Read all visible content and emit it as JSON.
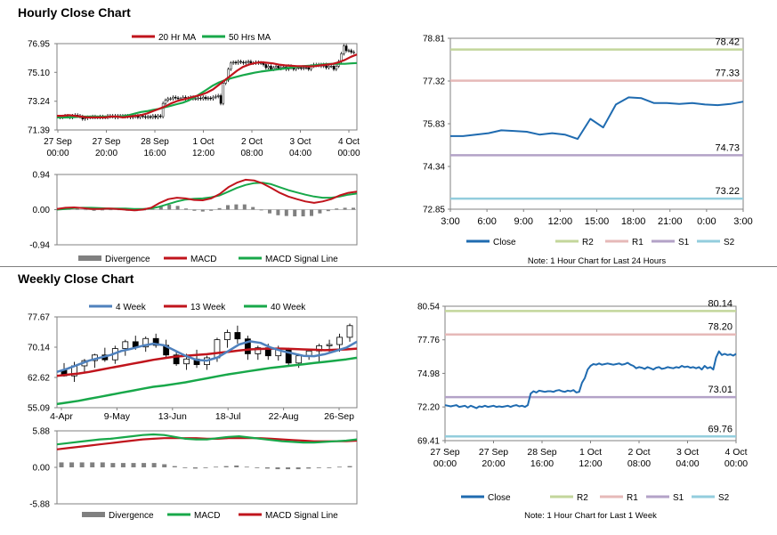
{
  "sections": {
    "hourly_title": "Hourly Close Chart",
    "weekly_title": "Weekly Close Chart"
  },
  "colors": {
    "red": "#c0141c",
    "green": "#18a84a",
    "blue": "#1f6bb0",
    "gray": "#808080",
    "r2": "#c3d69b",
    "r1": "#e6b9b8",
    "s1": "#b3a2c7",
    "s2": "#93cddd"
  },
  "chart_data": [
    {
      "id": "hourly_price",
      "type": "candlestick",
      "title": "Hourly Close Chart",
      "legend": [
        "20 Hr MA",
        "50 Hrs MA"
      ],
      "yticks": [
        "76.95",
        "75.10",
        "73.24",
        "71.39"
      ],
      "ylim": [
        71.39,
        76.95
      ],
      "xticks": [
        [
          "27 Sep",
          "00:00"
        ],
        [
          "27 Sep",
          "20:00"
        ],
        [
          "28 Sep",
          "16:00"
        ],
        [
          "1 Oct",
          "12:00"
        ],
        [
          "2 Oct",
          "08:00"
        ],
        [
          "3 Oct",
          "04:00"
        ],
        [
          "4 Oct",
          "00:00"
        ]
      ],
      "close": [
        72.2,
        72.25,
        72.3,
        72.25,
        72.2,
        72.3,
        72.35,
        72.3,
        72.25,
        72.1,
        72.15,
        72.2,
        72.2,
        72.25,
        72.2,
        72.2,
        72.25,
        72.2,
        72.2,
        72.3,
        72.25,
        72.3,
        72.2,
        72.3,
        72.3,
        72.25,
        72.3,
        72.25,
        72.2,
        72.25,
        72.3,
        72.2,
        72.3,
        72.25,
        72.2,
        72.25,
        72.2,
        72.3,
        72.2,
        72.3,
        72.25,
        73.1,
        73.3,
        73.4,
        73.4,
        73.5,
        73.45,
        73.4,
        73.4,
        73.5,
        73.4,
        73.45,
        73.5,
        73.4,
        73.4,
        73.45,
        73.4,
        73.5,
        73.4,
        73.45,
        73.4,
        73.5,
        73.55,
        73.6,
        73.1,
        74.4,
        74.6,
        75.3,
        75.7,
        75.75,
        75.7,
        75.8,
        75.75,
        75.7,
        75.75,
        75.8,
        75.7,
        75.7,
        75.75,
        75.7,
        75.7,
        75.6,
        75.4,
        75.5,
        75.3,
        75.4,
        75.5,
        75.35,
        75.4,
        75.45,
        75.3,
        75.5,
        75.4,
        75.3,
        75.4,
        75.4,
        75.35,
        75.4,
        75.4,
        75.3,
        75.5,
        75.6,
        75.55,
        75.6,
        75.5,
        75.6,
        75.4,
        75.5,
        75.5,
        75.3,
        75.5,
        75.8,
        76.3,
        76.8,
        76.5,
        76.5,
        76.4,
        76.4
      ],
      "ma20": [
        72.3,
        72.3,
        72.35,
        72.3,
        72.25,
        72.2,
        72.2,
        72.2,
        72.2,
        72.25,
        72.25,
        72.2,
        72.25,
        72.3,
        72.35,
        72.45,
        72.6,
        72.75,
        72.9,
        73.1,
        73.25,
        73.35,
        73.45,
        73.55,
        73.65,
        73.8,
        74.0,
        74.3,
        74.6,
        74.9,
        75.2,
        75.45,
        75.6,
        75.7,
        75.75,
        75.72,
        75.68,
        75.6,
        75.55,
        75.52,
        75.5,
        75.5,
        75.48,
        75.5,
        75.55,
        75.6,
        75.65,
        75.75,
        75.9,
        76.1,
        76.25
      ],
      "ma50": [
        72.2,
        72.2,
        72.2,
        72.22,
        72.25,
        72.25,
        72.25,
        72.25,
        72.25,
        72.25,
        72.25,
        72.28,
        72.35,
        72.45,
        72.55,
        72.6,
        72.68,
        72.75,
        72.85,
        72.95,
        73.05,
        73.15,
        73.3,
        73.5,
        73.75,
        74.0,
        74.25,
        74.45,
        74.6,
        74.72,
        74.82,
        74.92,
        75.0,
        75.08,
        75.15,
        75.2,
        75.25,
        75.3,
        75.35,
        75.4,
        75.45,
        75.5,
        75.52,
        75.55,
        75.6,
        75.63,
        75.65,
        75.65,
        75.65,
        75.68,
        75.7
      ]
    },
    {
      "id": "hourly_macd",
      "type": "bar+line",
      "yticks": [
        "0.94",
        "0.00",
        "-0.94"
      ],
      "ylim": [
        -0.94,
        0.94
      ],
      "legend": [
        "Divergence",
        "MACD",
        "MACD Signal Line"
      ],
      "macd": [
        0.02,
        0.05,
        0.06,
        0.04,
        0.02,
        0.02,
        0.03,
        0.02,
        0.0,
        -0.02,
        0.0,
        0.05,
        0.18,
        0.28,
        0.32,
        0.3,
        0.26,
        0.25,
        0.3,
        0.42,
        0.6,
        0.72,
        0.8,
        0.78,
        0.7,
        0.58,
        0.45,
        0.35,
        0.28,
        0.22,
        0.18,
        0.22,
        0.28,
        0.38,
        0.45,
        0.48
      ],
      "signal": [
        0.0,
        0.02,
        0.04,
        0.05,
        0.05,
        0.04,
        0.03,
        0.03,
        0.03,
        0.02,
        0.02,
        0.03,
        0.08,
        0.15,
        0.22,
        0.27,
        0.29,
        0.3,
        0.33,
        0.38,
        0.48,
        0.58,
        0.66,
        0.71,
        0.72,
        0.68,
        0.6,
        0.52,
        0.46,
        0.4,
        0.35,
        0.32,
        0.32,
        0.35,
        0.4,
        0.43
      ],
      "divergence": [
        0.02,
        0.03,
        0.02,
        -0.01,
        -0.03,
        -0.02,
        0.0,
        -0.01,
        -0.03,
        -0.04,
        -0.02,
        0.02,
        0.1,
        0.13,
        0.1,
        0.03,
        -0.03,
        -0.05,
        -0.03,
        0.04,
        0.12,
        0.14,
        0.14,
        0.07,
        -0.02,
        -0.1,
        -0.15,
        -0.17,
        -0.18,
        -0.18,
        -0.17,
        -0.1,
        -0.04,
        0.03,
        0.05,
        0.05
      ]
    },
    {
      "id": "hourly_pivot",
      "type": "line",
      "note": "Note: 1 Hour Chart for Last 24 Hours",
      "yticks": [
        "78.81",
        "77.32",
        "75.83",
        "74.34",
        "72.85"
      ],
      "ylim": [
        72.85,
        78.81
      ],
      "xticks": [
        "3:00",
        "6:00",
        "9:00",
        "12:00",
        "15:00",
        "18:00",
        "21:00",
        "0:00",
        "3:00"
      ],
      "legend": [
        "Close",
        "R2",
        "R1",
        "S1",
        "S2"
      ],
      "levels": {
        "R2": 78.42,
        "R1": 77.33,
        "S1": 74.73,
        "S2": 73.22
      },
      "level_labels": {
        "R2": "78.42",
        "R1": "77.33",
        "S1": "74.73",
        "S2": "73.22"
      },
      "close": [
        75.4,
        75.4,
        75.45,
        75.5,
        75.6,
        75.58,
        75.55,
        75.45,
        75.5,
        75.45,
        75.3,
        76.0,
        75.7,
        76.5,
        76.75,
        76.72,
        76.55,
        76.55,
        76.52,
        76.55,
        76.5,
        76.48,
        76.52,
        76.6
      ]
    },
    {
      "id": "weekly_price",
      "type": "candlestick",
      "title": "Weekly Close Chart",
      "legend": [
        "4 Week",
        "13 Week",
        "40 Week"
      ],
      "yticks": [
        "77.67",
        "70.14",
        "62.62",
        "55.09"
      ],
      "ylim": [
        55.09,
        77.67
      ],
      "xticks": [
        "4-Apr",
        "9-May",
        "13-Jun",
        "18-Jul",
        "22-Aug",
        "26-Sep"
      ],
      "ohlc": [
        [
          64.5,
          66.2,
          62.8,
          63.0
        ],
        [
          63.0,
          66.5,
          61.5,
          65.5
        ],
        [
          65.5,
          67.2,
          64.0,
          66.8
        ],
        [
          66.8,
          68.5,
          65.0,
          68.2
        ],
        [
          68.2,
          70.0,
          66.5,
          67.0
        ],
        [
          67.0,
          70.5,
          66.0,
          69.8
        ],
        [
          69.8,
          72.0,
          68.0,
          71.5
        ],
        [
          71.5,
          73.0,
          69.5,
          70.2
        ],
        [
          70.2,
          72.8,
          69.0,
          72.3
        ],
        [
          72.3,
          73.5,
          70.0,
          70.6
        ],
        [
          70.6,
          72.0,
          67.5,
          68.2
        ],
        [
          68.2,
          69.0,
          65.5,
          66.0
        ],
        [
          66.0,
          68.5,
          64.5,
          67.2
        ],
        [
          67.2,
          69.5,
          65.0,
          65.8
        ],
        [
          65.8,
          68.0,
          64.5,
          67.5
        ],
        [
          67.5,
          72.5,
          66.5,
          72.0
        ],
        [
          72.0,
          74.5,
          70.0,
          73.8
        ],
        [
          73.8,
          75.5,
          71.0,
          72.2
        ],
        [
          72.2,
          73.0,
          67.0,
          68.5
        ],
        [
          68.5,
          70.5,
          67.0,
          70.0
        ],
        [
          70.0,
          71.0,
          67.0,
          68.0
        ],
        [
          68.0,
          70.5,
          66.8,
          69.5
        ],
        [
          69.5,
          70.0,
          65.5,
          66.2
        ],
        [
          66.2,
          68.5,
          65.0,
          68.0
        ],
        [
          68.0,
          69.5,
          67.0,
          69.2
        ],
        [
          69.2,
          71.0,
          66.5,
          70.5
        ],
        [
          70.5,
          72.0,
          68.5,
          70.8
        ],
        [
          70.8,
          73.5,
          69.0,
          72.6
        ],
        [
          72.6,
          76.0,
          71.5,
          75.5
        ]
      ],
      "ma4": [
        64.0,
        64.8,
        65.8,
        66.8,
        67.5,
        68.2,
        69.2,
        69.8,
        70.5,
        71.0,
        70.6,
        69.3,
        68.0,
        67.0,
        66.8,
        67.6,
        69.2,
        70.8,
        71.6,
        71.2,
        70.0,
        69.2,
        68.6,
        68.0,
        67.9,
        68.4,
        69.2,
        70.0,
        71.5
      ],
      "ma13": [
        63.0,
        63.3,
        63.6,
        64.0,
        64.5,
        65.0,
        65.5,
        66.0,
        66.5,
        67.0,
        67.4,
        67.8,
        68.0,
        68.2,
        68.4,
        68.7,
        69.0,
        69.3,
        69.6,
        69.7,
        69.8,
        69.8,
        69.7,
        69.6,
        69.5,
        69.4,
        69.5,
        69.6,
        69.8
      ],
      "ma40": [
        56.0,
        56.4,
        56.8,
        57.3,
        57.8,
        58.3,
        58.8,
        59.3,
        59.8,
        60.3,
        60.6,
        61.0,
        61.4,
        61.9,
        62.4,
        62.9,
        63.4,
        63.8,
        64.2,
        64.6,
        65.0,
        65.3,
        65.6,
        65.9,
        66.2,
        66.5,
        66.8,
        67.1,
        67.5
      ]
    },
    {
      "id": "weekly_macd",
      "type": "bar+line",
      "yticks": [
        "5.88",
        "0.00",
        "-5.88"
      ],
      "ylim": [
        -5.88,
        5.88
      ],
      "legend": [
        "Divergence",
        "MACD",
        "MACD Signal Line"
      ],
      "macd": [
        3.7,
        3.9,
        4.1,
        4.3,
        4.5,
        4.6,
        4.8,
        5.0,
        5.2,
        5.3,
        5.2,
        4.9,
        4.6,
        4.5,
        4.5,
        4.7,
        4.9,
        5.0,
        4.8,
        4.6,
        4.4,
        4.2,
        4.1,
        4.0,
        4.0,
        4.1,
        4.2,
        4.3,
        4.5
      ],
      "signal": [
        2.9,
        3.1,
        3.3,
        3.5,
        3.7,
        3.9,
        4.1,
        4.3,
        4.5,
        4.6,
        4.7,
        4.7,
        4.7,
        4.7,
        4.6,
        4.6,
        4.7,
        4.7,
        4.7,
        4.7,
        4.6,
        4.5,
        4.4,
        4.3,
        4.2,
        4.2,
        4.2,
        4.2,
        4.3
      ],
      "divergence": [
        0.8,
        0.8,
        0.8,
        0.8,
        0.8,
        0.7,
        0.7,
        0.7,
        0.7,
        0.7,
        0.5,
        0.2,
        -0.1,
        -0.2,
        -0.1,
        0.1,
        0.2,
        0.3,
        0.1,
        -0.1,
        -0.2,
        -0.3,
        -0.3,
        -0.3,
        -0.2,
        -0.1,
        0.0,
        0.1,
        0.2
      ]
    },
    {
      "id": "weekly_pivot",
      "type": "line",
      "note": "Note: 1 Hour Chart for Last 1 Week",
      "yticks": [
        "80.54",
        "77.76",
        "74.98",
        "72.20",
        "69.41"
      ],
      "ylim": [
        69.41,
        80.54
      ],
      "xticks": [
        [
          "27 Sep",
          "00:00"
        ],
        [
          "27 Sep",
          "20:00"
        ],
        [
          "28 Sep",
          "16:00"
        ],
        [
          "1 Oct",
          "12:00"
        ],
        [
          "2 Oct",
          "08:00"
        ],
        [
          "3 Oct",
          "04:00"
        ],
        [
          "4 Oct",
          "00:00"
        ]
      ],
      "legend": [
        "Close",
        "R2",
        "R1",
        "S1",
        "S2"
      ],
      "levels": {
        "R2": 80.14,
        "R1": 78.2,
        "S1": 73.01,
        "S2": 69.76
      },
      "level_labels": {
        "R2": "80.14",
        "R1": "78.20",
        "S1": "73.01",
        "S2": "69.76"
      },
      "close": [
        72.35,
        72.3,
        72.25,
        72.3,
        72.35,
        72.2,
        72.25,
        72.3,
        72.15,
        72.3,
        72.2,
        72.1,
        72.25,
        72.2,
        72.3,
        72.2,
        72.25,
        72.3,
        72.2,
        72.25,
        72.2,
        72.25,
        72.3,
        72.2,
        72.3,
        72.35,
        72.25,
        72.3,
        72.2,
        72.35,
        73.3,
        73.5,
        73.4,
        73.55,
        73.5,
        73.45,
        73.5,
        73.5,
        73.45,
        73.55,
        73.6,
        73.5,
        73.45,
        73.55,
        73.5,
        73.6,
        73.4,
        73.45,
        74.2,
        74.6,
        75.3,
        75.6,
        75.75,
        75.7,
        75.8,
        75.7,
        75.75,
        75.8,
        75.75,
        75.7,
        75.75,
        75.8,
        75.7,
        75.75,
        75.85,
        75.7,
        75.6,
        75.4,
        75.5,
        75.45,
        75.35,
        75.5,
        75.4,
        75.3,
        75.45,
        75.5,
        75.35,
        75.4,
        75.5,
        75.45,
        75.4,
        75.5,
        75.45,
        75.6,
        75.5,
        75.55,
        75.45,
        75.5,
        75.4,
        75.5,
        75.3,
        75.6,
        75.4,
        75.5,
        75.3,
        76.3,
        76.8,
        76.5,
        76.6,
        76.5,
        76.55,
        76.45,
        76.6
      ]
    }
  ]
}
